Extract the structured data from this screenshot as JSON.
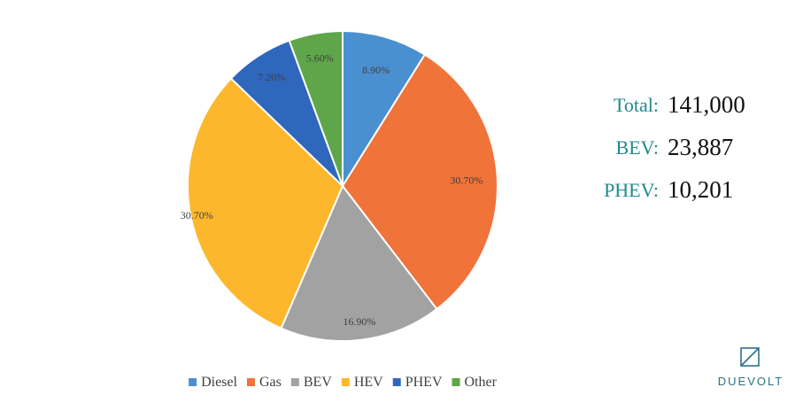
{
  "chart_data": {
    "type": "pie",
    "categories": [
      "Diesel",
      "Gas",
      "BEV",
      "HEV",
      "PHEV",
      "Other"
    ],
    "values": [
      8.9,
      30.7,
      16.9,
      30.7,
      7.2,
      5.6
    ],
    "value_labels": [
      "8.90%",
      "30.70%",
      "16.90%",
      "30.70%",
      "7.20%",
      "5.60%"
    ],
    "colors": [
      "#4a90d0",
      "#f0733a",
      "#a2a2a2",
      "#fdb72c",
      "#2f67bd",
      "#5fa64a"
    ],
    "legend_position": "bottom"
  },
  "stats": [
    {
      "label": "Total:",
      "value": "141,000"
    },
    {
      "label": "BEV:",
      "value": "23,887"
    },
    {
      "label": "PHEV:",
      "value": "10,201"
    }
  ],
  "brand": {
    "name": "DUEVOLT",
    "icon": "duevolt-logo-icon",
    "color": "#2d6f88"
  }
}
